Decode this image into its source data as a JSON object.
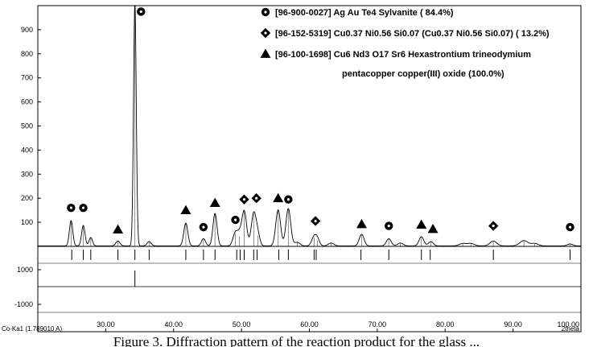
{
  "caption": "Figure 3. Diffraction pattern of the reaction product for the glass ...",
  "chart_data": {
    "type": "line",
    "title": "",
    "xlabel": "2theta",
    "ylabel": "",
    "xlim": [
      20,
      100
    ],
    "ylim": [
      0,
      1000
    ],
    "grid": false,
    "legend_position": "top-right",
    "x_ticks": [
      30,
      40,
      50,
      60,
      70,
      80,
      90,
      100
    ],
    "x_tick_labels": [
      "30.00",
      "40.00",
      "50.00",
      "60.00",
      "70.00",
      "80.00",
      "90.00",
      "100.00"
    ],
    "y_ticks": [
      100,
      200,
      300,
      400,
      500,
      600,
      700,
      800,
      900
    ],
    "y_tick_labels": [
      "100",
      "200",
      "300",
      "400",
      "500",
      "600",
      "700",
      "800",
      "900"
    ],
    "residual_ticks": [
      1000,
      -1000
    ],
    "residual_tick_labels": [
      "1000",
      "-1000"
    ],
    "wavelength_label": "Co-Ka1 (1.789010 A)",
    "legend": [
      {
        "marker": "circle-dot",
        "code": "[96-900-0027]",
        "text": "Ag Au Te4  Sylvanite ( 84.4%)"
      },
      {
        "marker": "diamond-dot",
        "code": "[96-152-5319]",
        "text": "Cu0.37 Ni0.56 Si0.07 (Cu0.37 Ni0.56 Si0.07) ( 13.2%)"
      },
      {
        "marker": "triangle",
        "code": "[96-100-1698]",
        "text": "Cu6 Nd3 O17 Sr6 Hexastrontium trineodymium",
        "text2": "pentacopper copper(III) oxide (100.0%)"
      }
    ],
    "peaks": [
      {
        "x": 24.9,
        "y": 105,
        "w": 0.25
      },
      {
        "x": 26.7,
        "y": 85,
        "w": 0.25
      },
      {
        "x": 27.8,
        "y": 35,
        "w": 0.25
      },
      {
        "x": 31.8,
        "y": 20,
        "w": 0.3
      },
      {
        "x": 34.3,
        "y": 1010,
        "w": 0.2
      },
      {
        "x": 36.4,
        "y": 18,
        "w": 0.3
      },
      {
        "x": 41.8,
        "y": 95,
        "w": 0.3
      },
      {
        "x": 44.4,
        "y": 30,
        "w": 0.3
      },
      {
        "x": 46.1,
        "y": 135,
        "w": 0.3
      },
      {
        "x": 49.1,
        "y": 55,
        "w": 0.35
      },
      {
        "x": 49.7,
        "y": 40,
        "w": 0.3
      },
      {
        "x": 50.4,
        "y": 145,
        "w": 0.35
      },
      {
        "x": 51.8,
        "y": 135,
        "w": 0.35
      },
      {
        "x": 52.4,
        "y": 45,
        "w": 0.3
      },
      {
        "x": 55.4,
        "y": 150,
        "w": 0.35
      },
      {
        "x": 56.9,
        "y": 155,
        "w": 0.35
      },
      {
        "x": 58.2,
        "y": 15,
        "w": 0.4
      },
      {
        "x": 60.7,
        "y": 38,
        "w": 0.35
      },
      {
        "x": 61.2,
        "y": 25,
        "w": 0.3
      },
      {
        "x": 63.2,
        "y": 12,
        "w": 0.4
      },
      {
        "x": 67.7,
        "y": 48,
        "w": 0.35
      },
      {
        "x": 71.7,
        "y": 30,
        "w": 0.35
      },
      {
        "x": 73.4,
        "y": 12,
        "w": 0.4
      },
      {
        "x": 76.5,
        "y": 38,
        "w": 0.35
      },
      {
        "x": 77.9,
        "y": 18,
        "w": 0.35
      },
      {
        "x": 82.6,
        "y": 10,
        "w": 0.5
      },
      {
        "x": 83.8,
        "y": 10,
        "w": 0.5
      },
      {
        "x": 87.1,
        "y": 20,
        "w": 0.5
      },
      {
        "x": 91.6,
        "y": 22,
        "w": 0.6
      },
      {
        "x": 93.2,
        "y": 10,
        "w": 0.5
      },
      {
        "x": 98.4,
        "y": 8,
        "w": 0.4
      }
    ],
    "phase_markers": [
      {
        "x": 24.9,
        "y": 160,
        "marker": "circle-dot"
      },
      {
        "x": 26.7,
        "y": 160,
        "marker": "circle-dot"
      },
      {
        "x": 31.8,
        "y": 70,
        "marker": "triangle"
      },
      {
        "x": 35.2,
        "y": 975,
        "marker": "circle-dot"
      },
      {
        "x": 41.8,
        "y": 150,
        "marker": "triangle"
      },
      {
        "x": 44.4,
        "y": 80,
        "marker": "circle-dot"
      },
      {
        "x": 46.1,
        "y": 180,
        "marker": "triangle"
      },
      {
        "x": 49.1,
        "y": 110,
        "marker": "circle-dot"
      },
      {
        "x": 50.4,
        "y": 195,
        "marker": "diamond-dot"
      },
      {
        "x": 52.2,
        "y": 200,
        "marker": "diamond-dot"
      },
      {
        "x": 55.4,
        "y": 200,
        "marker": "triangle"
      },
      {
        "x": 56.9,
        "y": 195,
        "marker": "circle-dot"
      },
      {
        "x": 60.9,
        "y": 105,
        "marker": "diamond-dot"
      },
      {
        "x": 67.7,
        "y": 92,
        "marker": "triangle"
      },
      {
        "x": 71.7,
        "y": 85,
        "marker": "circle-dot"
      },
      {
        "x": 76.5,
        "y": 90,
        "marker": "triangle"
      },
      {
        "x": 78.2,
        "y": 72,
        "marker": "triangle"
      },
      {
        "x": 87.1,
        "y": 85,
        "marker": "diamond-dot"
      },
      {
        "x": 98.4,
        "y": 80,
        "marker": "circle-dot"
      }
    ],
    "reference_lines": [
      25.0,
      26.7,
      27.8,
      31.8,
      34.3,
      36.4,
      41.8,
      44.4,
      46.1,
      49.3,
      49.8,
      50.4,
      51.8,
      52.3,
      55.5,
      56.9,
      60.7,
      61.0,
      67.6,
      71.7,
      76.5,
      77.8,
      87.1,
      98.4
    ],
    "residual_spike_x": 34.3
  }
}
